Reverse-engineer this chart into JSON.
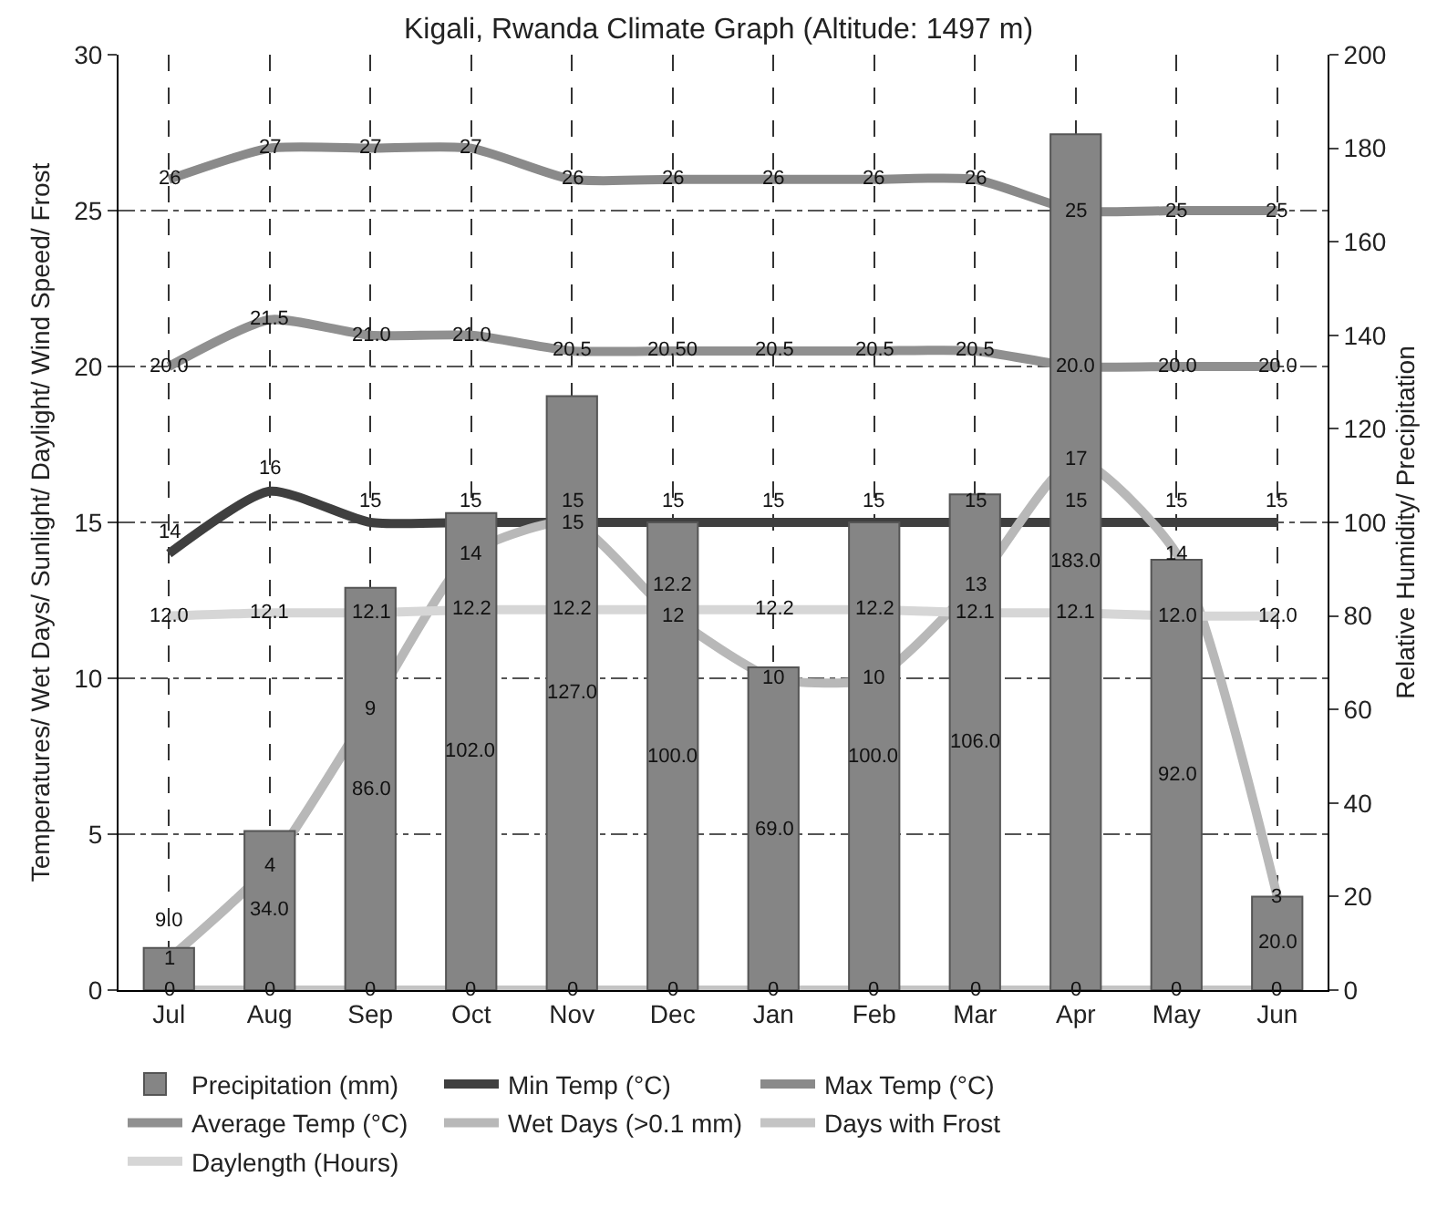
{
  "chart_data": {
    "type": "line",
    "title": "Kigali, Rwanda Climate Graph (Altitude: 1497 m)",
    "ylabel": "Temperatures/ Wet Days/ Sunlight/ Daylight/ Wind Speed/ Frost",
    "y2label": "Relative Humidity/ Precipitation",
    "categories": [
      "Jul",
      "Aug",
      "Sep",
      "Oct",
      "Nov",
      "Dec",
      "Jan",
      "Feb",
      "Mar",
      "Apr",
      "May",
      "Jun"
    ],
    "ylim": [
      0,
      30
    ],
    "yticks": [
      0,
      5,
      10,
      15,
      20,
      25,
      30
    ],
    "y2lim": [
      0,
      200
    ],
    "y2ticks": [
      0,
      20,
      40,
      60,
      80,
      100,
      120,
      140,
      160,
      180,
      200
    ],
    "grid": true,
    "legend": "bottom",
    "marker": "none",
    "line_style": "solid",
    "series": [
      {
        "name": "Precipitation (mm)",
        "type": "bar",
        "axis": "y2",
        "color": "#858585",
        "values": [
          9,
          34,
          86,
          102,
          127,
          100,
          69,
          100,
          106,
          183,
          92,
          20
        ],
        "value_labels": [
          "9.0",
          "34.0",
          "86.0",
          "102.0",
          "127.0",
          "100.0",
          "69.0",
          "100.0",
          "106.0",
          "183.0",
          "92.0",
          "20.0"
        ]
      },
      {
        "name": "Min Temp (°C)",
        "color": "#3f3f3f",
        "values": [
          14,
          16,
          15,
          15,
          15,
          15,
          15,
          15,
          15,
          15,
          15,
          15
        ],
        "value_labels": [
          "14",
          "16",
          "15",
          "15",
          "15",
          "15",
          "15",
          "15",
          "15",
          "15",
          "15",
          "15"
        ]
      },
      {
        "name": "Max Temp (°C)",
        "color": "#8a8a8a",
        "values": [
          26,
          27,
          27,
          27,
          26,
          26,
          26,
          26,
          26,
          25,
          25,
          25
        ],
        "value_labels": [
          "26",
          "27",
          "27",
          "27",
          "26",
          "26",
          "26",
          "26",
          "26",
          "25",
          "25",
          "25"
        ]
      },
      {
        "name": "Average Temp (°C)",
        "color": "#909090",
        "values": [
          20.0,
          21.5,
          21.0,
          21.0,
          20.5,
          20.5,
          20.5,
          20.5,
          20.5,
          20.0,
          20.0,
          20.0
        ],
        "value_labels": [
          "20.0",
          "21.5",
          "21.0",
          "21.0",
          "20.5",
          "20.50",
          "20.5",
          "20.5",
          "20.5",
          "20.0",
          "20.0",
          "20.0"
        ]
      },
      {
        "name": "Wet Days (>0.1 mm)",
        "color": "#b8b8b8",
        "values": [
          1,
          4,
          9,
          14,
          15,
          12,
          10,
          10,
          13,
          17,
          14,
          3
        ],
        "value_labels": [
          "1",
          "4",
          "9",
          "14",
          "15",
          "12",
          "10",
          "10",
          "13",
          "17",
          "14",
          "3"
        ]
      },
      {
        "name": "Days with Frost",
        "color": "#c4c4c4",
        "values": [
          0,
          0,
          0,
          0,
          0,
          0,
          0,
          0,
          0,
          0,
          0,
          0
        ],
        "value_labels": [
          "0",
          "0",
          "0",
          "0",
          "0",
          "0",
          "0",
          "0",
          "0",
          "0",
          "0",
          "0"
        ]
      },
      {
        "name": "Daylength (Hours)",
        "color": "#d6d6d6",
        "values": [
          12.0,
          12.1,
          12.1,
          12.2,
          12.2,
          12.2,
          12.2,
          12.2,
          12.1,
          12.1,
          12.0,
          12.0
        ],
        "value_labels": [
          "12.0",
          "12.1",
          "12.1",
          "12.2",
          "12.2",
          "12.2",
          "12.2",
          "12.2",
          "12.1",
          "12.1",
          "12.0",
          "12.0"
        ]
      }
    ]
  }
}
